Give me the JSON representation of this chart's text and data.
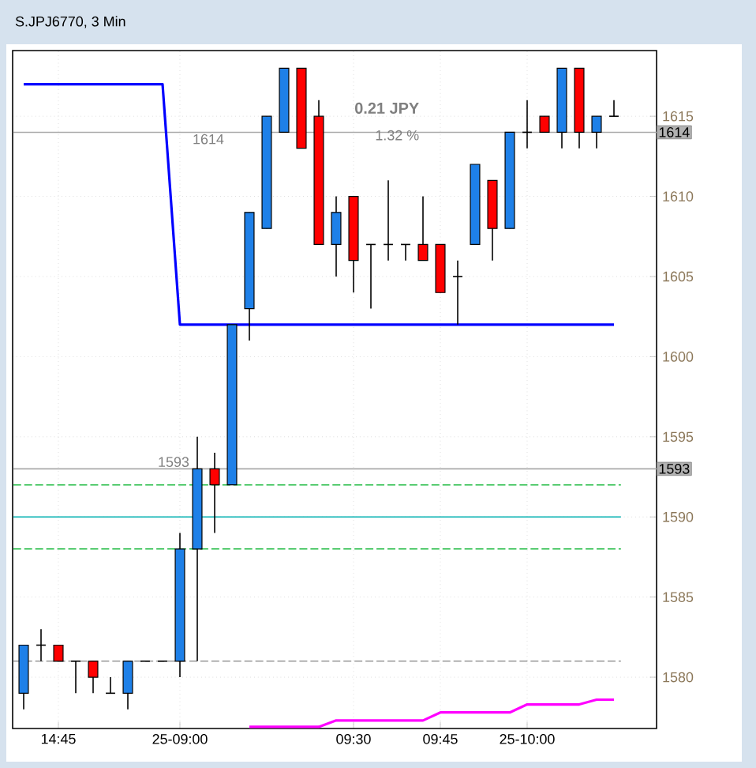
{
  "chart_data": {
    "type": "candlestick",
    "title": "S.JPJ6770, 3 Min",
    "categories": [
      null,
      null,
      "14:45",
      null,
      null,
      null,
      null,
      null,
      null,
      "25-09:00",
      null,
      null,
      null,
      null,
      null,
      null,
      null,
      null,
      null,
      "09:30",
      null,
      null,
      null,
      null,
      "09:45",
      null,
      null,
      null,
      null,
      "25-10:00",
      null,
      null,
      null,
      null,
      null
    ],
    "ohlc": [
      [
        1579,
        1582,
        1578,
        1582
      ],
      [
        1582,
        1583,
        1581,
        1582
      ],
      [
        1582,
        1582,
        1581,
        1581
      ],
      [
        1581,
        1581,
        1579,
        1581
      ],
      [
        1581,
        1581,
        1579,
        1580
      ],
      [
        1579,
        1580,
        1579,
        1579
      ],
      [
        1579,
        1581,
        1578,
        1581
      ],
      [
        1581,
        1581,
        1581,
        1581
      ],
      [
        1581,
        1581,
        1581,
        1581
      ],
      [
        1581,
        1589,
        1580,
        1588
      ],
      [
        1588,
        1595,
        1581,
        1593
      ],
      [
        1593,
        1594,
        1589,
        1592
      ],
      [
        1592,
        1602,
        1592,
        1602
      ],
      [
        1603,
        1609,
        1601,
        1609
      ],
      [
        1608,
        1615,
        1608,
        1615
      ],
      [
        1614,
        1618,
        1614,
        1618
      ],
      [
        1618,
        1618,
        1613,
        1613
      ],
      [
        1615,
        1616,
        1607,
        1607
      ],
      [
        1607,
        1610,
        1605,
        1609
      ],
      [
        1610,
        1610,
        1604,
        1606
      ],
      [
        1607,
        1607,
        1603,
        1607
      ],
      [
        1607,
        1611,
        1606,
        1607
      ],
      [
        1607,
        1607,
        1606,
        1607
      ],
      [
        1607,
        1610,
        1606,
        1606
      ],
      [
        1607,
        1607,
        1604,
        1604
      ],
      [
        1605,
        1606,
        1602,
        1605
      ],
      [
        1607,
        1612,
        1607,
        1612
      ],
      [
        1611,
        1611,
        1606,
        1608
      ],
      [
        1608,
        1614,
        1608,
        1614
      ],
      [
        1614,
        1616,
        1613,
        1614
      ],
      [
        1615,
        1615,
        1614,
        1614
      ],
      [
        1614,
        1618,
        1613,
        1618
      ],
      [
        1618,
        1618,
        1613,
        1614
      ],
      [
        1614,
        1615,
        1613,
        1615
      ],
      [
        1615,
        1616,
        1615,
        1615
      ]
    ],
    "colors": [
      "#1e80e8",
      "#000000",
      "#ff0000",
      "#000000",
      "#ff0000",
      "#000000",
      "#1e80e8",
      "#000000",
      "#000000",
      "#1e80e8",
      "#1e80e8",
      "#ff0000",
      "#1e80e8",
      "#1e80e8",
      "#1e80e8",
      "#1e80e8",
      "#ff0000",
      "#ff0000",
      "#1e80e8",
      "#ff0000",
      "#000000",
      "#000000",
      "#000000",
      "#ff0000",
      "#ff0000",
      "#000000",
      "#1e80e8",
      "#ff0000",
      "#1e80e8",
      "#000000",
      "#ff0000",
      "#1e80e8",
      "#ff0000",
      "#1e80e8",
      "#000000"
    ],
    "series": [
      {
        "type": "line",
        "color": "#0000ff",
        "values": [
          1617,
          1617,
          1617,
          1617,
          1617,
          1617,
          1617,
          1617,
          1617,
          1602,
          1602,
          1602,
          1602,
          1602,
          1602,
          1602,
          1602,
          1602,
          1602,
          1602,
          1602,
          1602,
          1602,
          1602,
          1602,
          1602,
          1602,
          1602,
          1602,
          1602,
          1602,
          1602,
          1602,
          1602,
          1602
        ]
      },
      {
        "type": "line",
        "color": "#ff00ff",
        "values": [
          null,
          null,
          null,
          null,
          null,
          null,
          null,
          null,
          null,
          null,
          null,
          null,
          null,
          1576.9,
          1576.9,
          1576.9,
          1576.9,
          1576.9,
          1577.3,
          1577.3,
          1577.3,
          1577.3,
          1577.3,
          1577.3,
          1577.8,
          1577.8,
          1577.8,
          1577.8,
          1577.8,
          1578.3,
          1578.3,
          1578.3,
          1578.3,
          1578.6,
          1578.6
        ]
      }
    ],
    "ref_lines": [
      {
        "axis": "y",
        "value": 1592,
        "color": "#22bb44",
        "line_style": "dashed"
      },
      {
        "axis": "y",
        "value": 1588,
        "color": "#22bb44",
        "line_style": "dashed"
      },
      {
        "axis": "y",
        "value": 1590,
        "color": "#00b0b0",
        "line_style": "solid"
      },
      {
        "axis": "y",
        "value": 1581,
        "color": "#999999",
        "line_style": "dashed"
      },
      {
        "axis": "y",
        "value": 1614,
        "label": "1614",
        "color": "#aaaaaa",
        "line_style": "solid"
      },
      {
        "axis": "y",
        "value": 1593,
        "label": "1593",
        "color": "#aaaaaa",
        "line_style": "solid"
      }
    ],
    "annotations": [
      "0.21 JPY",
      "1.32 %",
      {
        "text": "1614",
        "y": 1614
      },
      {
        "text": "1593",
        "y": 1593
      }
    ],
    "ylim": [
      1576.8,
      1619.1
    ],
    "yticks": [
      1580,
      1585,
      1590,
      1595,
      1600,
      1605,
      1610,
      1615
    ],
    "grid": true
  }
}
